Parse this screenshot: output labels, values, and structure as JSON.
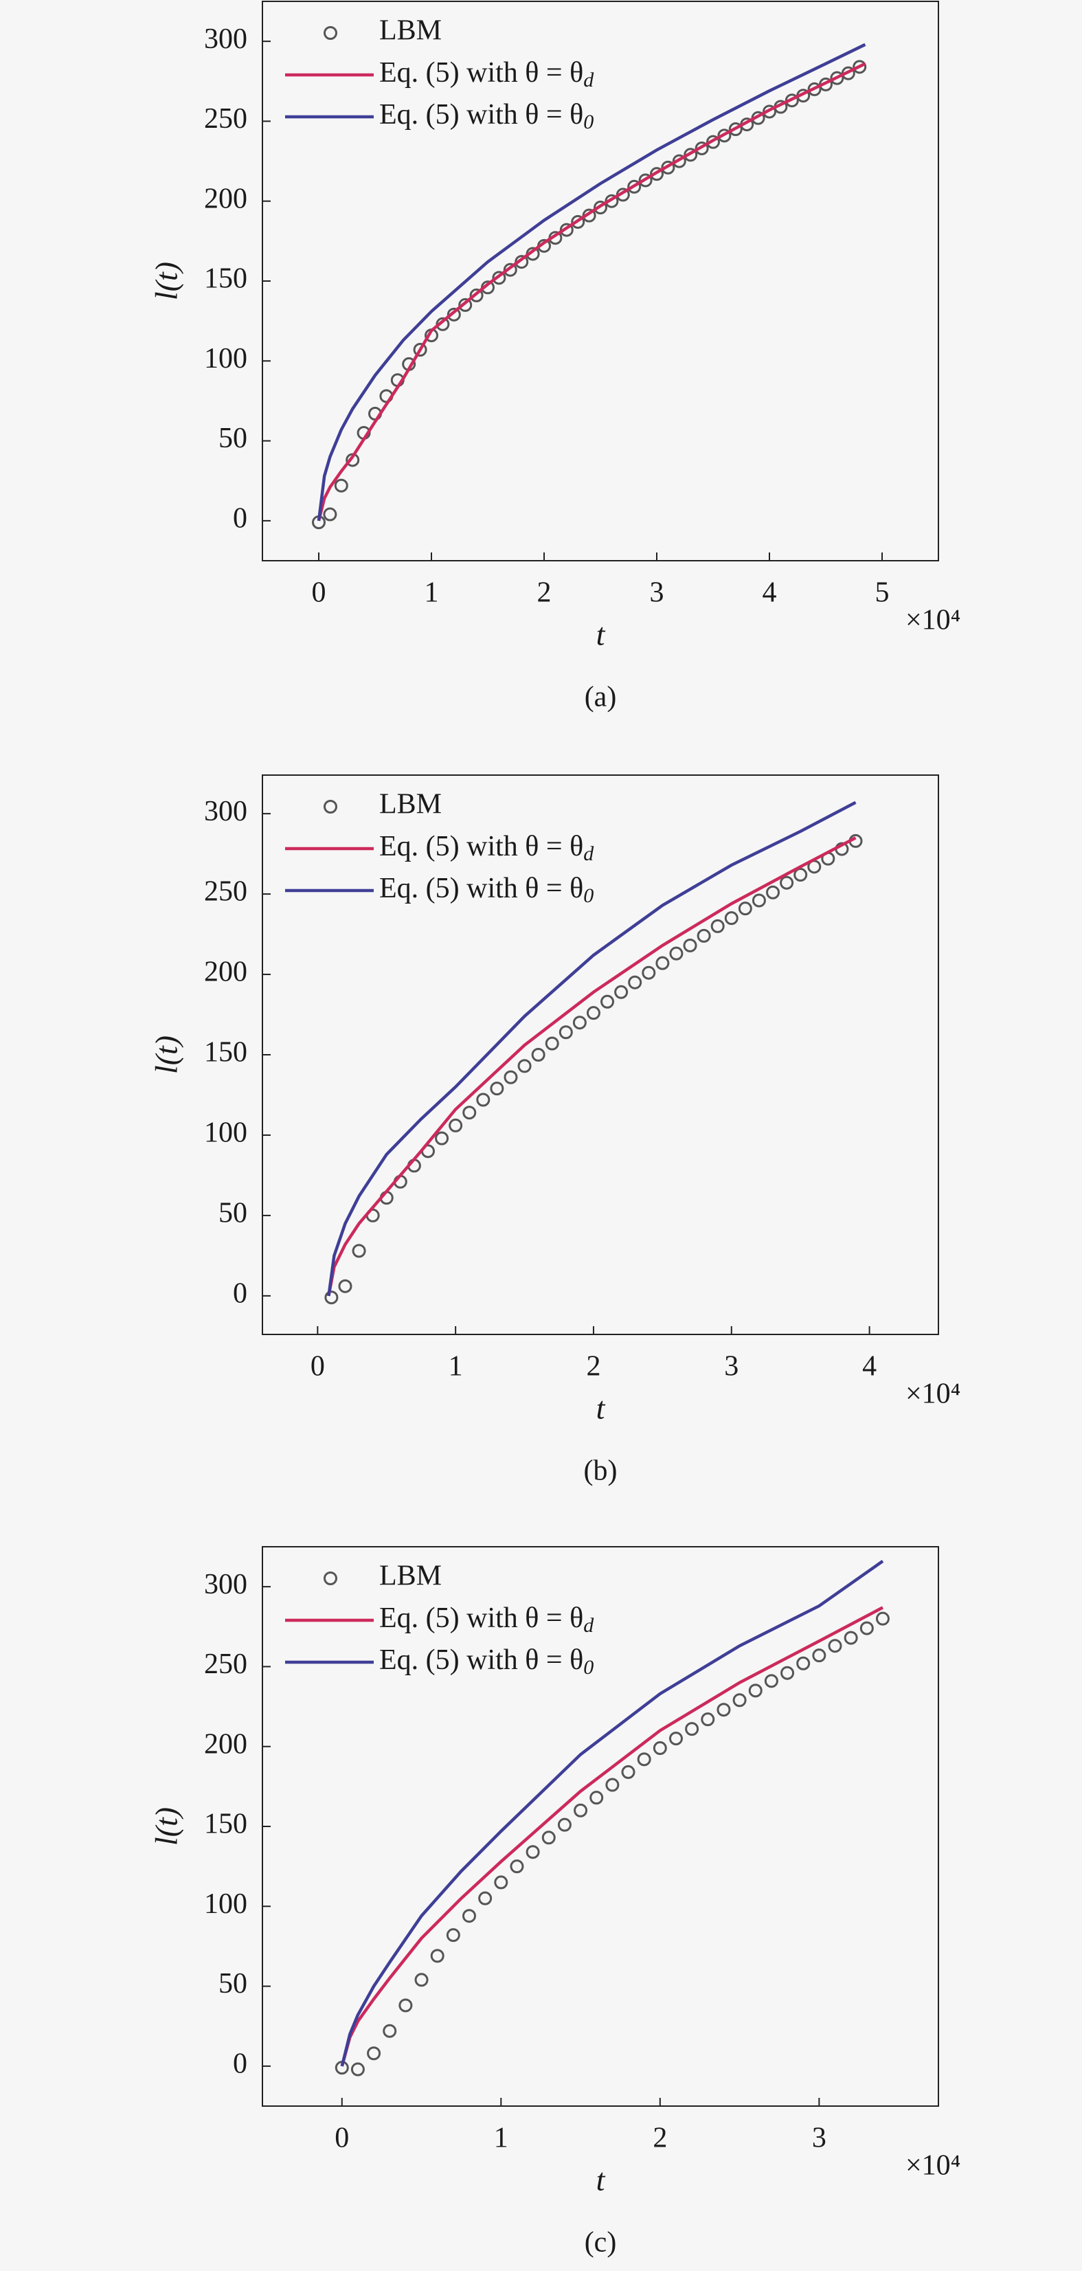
{
  "chart_data": [
    {
      "type": "line",
      "xlabel": "t",
      "ylabel": "l(t)",
      "x_multiplier": "×10⁴",
      "caption": "(a)",
      "legend": "upper left",
      "xlim": [
        -0.5,
        5.5
      ],
      "xticks": [
        0,
        1,
        2,
        3,
        4,
        5
      ],
      "ylim": [
        -25,
        325
      ],
      "yticks": [
        0,
        50,
        100,
        150,
        200,
        250,
        300
      ],
      "series": [
        {
          "name": "LBM",
          "mode": "markers",
          "color": "#555555",
          "x": [
            0,
            0.1,
            0.2,
            0.3,
            0.4,
            0.5,
            0.6,
            0.7,
            0.8,
            0.9,
            1.0,
            1.1,
            1.2,
            1.3,
            1.4,
            1.5,
            1.6,
            1.7,
            1.8,
            1.9,
            2.0,
            2.1,
            2.2,
            2.3,
            2.4,
            2.5,
            2.6,
            2.7,
            2.8,
            2.9,
            3.0,
            3.1,
            3.2,
            3.3,
            3.4,
            3.5,
            3.6,
            3.7,
            3.8,
            3.9,
            4.0,
            4.1,
            4.2,
            4.3,
            4.4,
            4.5,
            4.6,
            4.7,
            4.8
          ],
          "values": [
            -1,
            4,
            22,
            38,
            55,
            67,
            78,
            88,
            98,
            107,
            116,
            123,
            129,
            135,
            141,
            146,
            152,
            157,
            162,
            167,
            172,
            177,
            182,
            187,
            191,
            196,
            200,
            204,
            209,
            213,
            217,
            221,
            225,
            229,
            233,
            237,
            241,
            245,
            248,
            252,
            256,
            259,
            263,
            266,
            270,
            273,
            277,
            280,
            284
          ]
        },
        {
          "name": "Eq. (5) with θ = θd",
          "mode": "lines",
          "color": "#cc2a5c",
          "x": [
            0,
            0.05,
            0.1,
            0.2,
            0.3,
            0.5,
            0.75,
            1,
            1.5,
            2,
            2.5,
            3,
            3.5,
            4,
            4.5,
            4.85
          ],
          "values": [
            0,
            14,
            21,
            31,
            40,
            62,
            89,
            119,
            148,
            174,
            197,
            218,
            238,
            257,
            274,
            286
          ]
        },
        {
          "name": "Eq. (5) with θ = θ0",
          "mode": "lines",
          "color": "#3f3f97",
          "x": [
            0,
            0.05,
            0.1,
            0.2,
            0.3,
            0.5,
            0.75,
            1,
            1.5,
            2,
            2.5,
            3,
            3.5,
            4,
            4.5,
            4.85
          ],
          "values": [
            0,
            28,
            40,
            57,
            70,
            91,
            113,
            131,
            162,
            188,
            211,
            232,
            251,
            269,
            286,
            298
          ]
        }
      ]
    },
    {
      "type": "line",
      "xlabel": "t",
      "ylabel": "l(t)",
      "x_multiplier": "×10⁴",
      "caption": "(b)",
      "legend": "upper left",
      "xlim": [
        -0.4,
        4.5
      ],
      "xticks": [
        0,
        1,
        2,
        3,
        4
      ],
      "ylim": [
        -24,
        324
      ],
      "yticks": [
        0,
        50,
        100,
        150,
        200,
        250,
        300
      ],
      "series": [
        {
          "name": "LBM",
          "mode": "markers",
          "color": "#555555",
          "x": [
            0.1,
            0.2,
            0.3,
            0.4,
            0.5,
            0.6,
            0.7,
            0.8,
            0.9,
            1.0,
            1.1,
            1.2,
            1.3,
            1.4,
            1.5,
            1.6,
            1.7,
            1.8,
            1.9,
            2.0,
            2.1,
            2.2,
            2.3,
            2.4,
            2.5,
            2.6,
            2.7,
            2.8,
            2.9,
            3.0,
            3.1,
            3.2,
            3.3,
            3.4,
            3.5,
            3.6,
            3.7,
            3.8,
            3.9
          ],
          "values": [
            -1,
            6,
            28,
            50,
            61,
            71,
            81,
            90,
            98,
            106,
            114,
            122,
            129,
            136,
            143,
            150,
            157,
            164,
            170,
            176,
            183,
            189,
            195,
            201,
            207,
            213,
            218,
            224,
            230,
            235,
            241,
            246,
            251,
            257,
            262,
            267,
            272,
            278,
            283
          ]
        },
        {
          "name": "Eq. (5) with θ = θd",
          "mode": "lines",
          "color": "#cc2a5c",
          "x": [
            0.08,
            0.12,
            0.2,
            0.3,
            0.5,
            0.75,
            1,
            1.5,
            2,
            2.5,
            3,
            3.5,
            3.9
          ],
          "values": [
            0,
            18,
            32,
            45,
            65,
            90,
            116,
            156,
            189,
            218,
            244,
            267,
            285
          ]
        },
        {
          "name": "Eq. (5) with θ = θ0",
          "mode": "lines",
          "color": "#3f3f97",
          "x": [
            0.08,
            0.12,
            0.2,
            0.3,
            0.5,
            0.75,
            1,
            1.5,
            2,
            2.5,
            3,
            3.5,
            3.9
          ],
          "values": [
            0,
            25,
            45,
            62,
            88,
            110,
            130,
            174,
            212,
            243,
            268,
            289,
            307
          ]
        }
      ]
    },
    {
      "type": "line",
      "xlabel": "t",
      "ylabel": "l(t)",
      "x_multiplier": "×10⁴",
      "caption": "(c)",
      "legend": "upper left",
      "xlim": [
        -0.5,
        3.75
      ],
      "xticks": [
        0,
        1,
        2,
        3
      ],
      "ylim": [
        -25,
        325
      ],
      "yticks": [
        0,
        50,
        100,
        150,
        200,
        250,
        300
      ],
      "series": [
        {
          "name": "LBM",
          "mode": "markers",
          "color": "#555555",
          "x": [
            0,
            0.1,
            0.2,
            0.3,
            0.4,
            0.5,
            0.6,
            0.7,
            0.8,
            0.9,
            1.0,
            1.1,
            1.2,
            1.3,
            1.4,
            1.5,
            1.6,
            1.7,
            1.8,
            1.9,
            2.0,
            2.1,
            2.2,
            2.3,
            2.4,
            2.5,
            2.6,
            2.7,
            2.8,
            2.9,
            3.0,
            3.1,
            3.2,
            3.3,
            3.4
          ],
          "values": [
            -1,
            -2,
            8,
            22,
            38,
            54,
            69,
            82,
            94,
            105,
            115,
            125,
            134,
            143,
            151,
            160,
            168,
            176,
            184,
            192,
            199,
            205,
            211,
            217,
            223,
            229,
            235,
            241,
            246,
            252,
            257,
            263,
            268,
            274,
            280
          ]
        },
        {
          "name": "Eq. (5) with θ = θd",
          "mode": "lines",
          "color": "#cc2a5c",
          "x": [
            0,
            0.05,
            0.1,
            0.2,
            0.3,
            0.5,
            0.75,
            1,
            1.5,
            2,
            2.5,
            3,
            3.4
          ],
          "values": [
            0,
            18,
            28,
            42,
            55,
            80,
            105,
            128,
            172,
            210,
            240,
            266,
            287
          ]
        },
        {
          "name": "Eq. (5) with θ = θ0",
          "mode": "lines",
          "color": "#3f3f97",
          "x": [
            0,
            0.05,
            0.1,
            0.2,
            0.3,
            0.5,
            0.75,
            1,
            1.5,
            2,
            2.5,
            3,
            3.4
          ],
          "values": [
            0,
            20,
            32,
            50,
            65,
            94,
            122,
            147,
            195,
            233,
            263,
            288,
            316
          ]
        }
      ]
    }
  ]
}
